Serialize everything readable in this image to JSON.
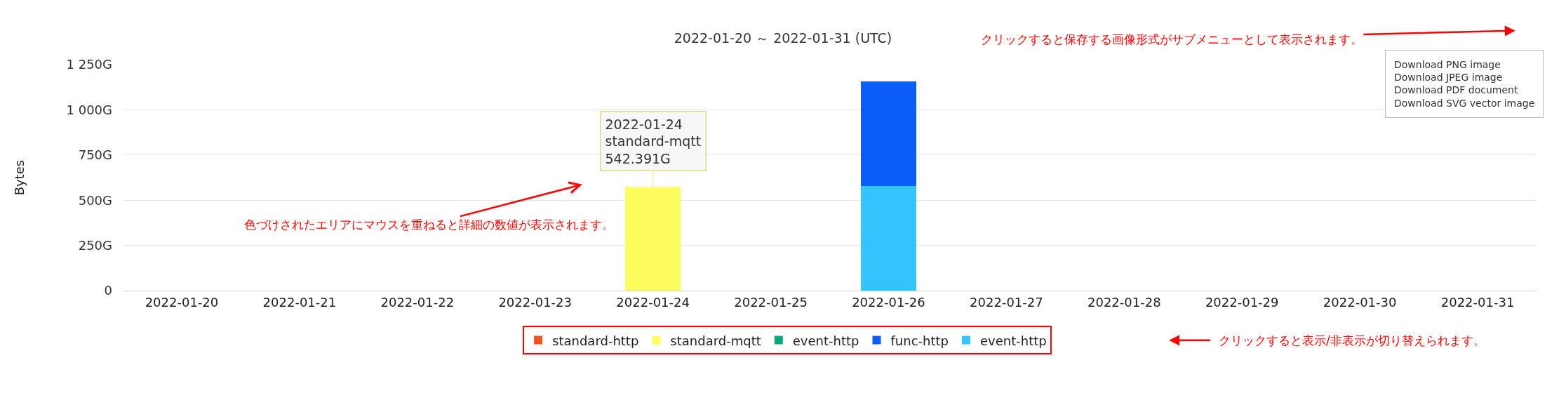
{
  "chart_data": {
    "type": "bar",
    "title": "2022-01-20 ～ 2022-01-31 (UTC)",
    "ylabel": "Bytes",
    "stacked": true,
    "categories": [
      "2022-01-20",
      "2022-01-21",
      "2022-01-22",
      "2022-01-23",
      "2022-01-24",
      "2022-01-25",
      "2022-01-26",
      "2022-01-27",
      "2022-01-28",
      "2022-01-29",
      "2022-01-30",
      "2022-01-31"
    ],
    "series": [
      {
        "name": "event-http",
        "color": "#33c4fd",
        "values": [
          null,
          null,
          null,
          null,
          null,
          null,
          578,
          null,
          null,
          null,
          null,
          null
        ]
      },
      {
        "name": "func-http",
        "color": "#0b5cf9",
        "values": [
          null,
          null,
          null,
          null,
          null,
          null,
          580,
          null,
          null,
          null,
          null,
          null
        ]
      },
      {
        "name": "event-http",
        "color": "#0ca87c",
        "values": [
          null,
          null,
          null,
          null,
          null,
          null,
          null,
          null,
          null,
          null,
          null,
          null
        ]
      },
      {
        "name": "standard-mqtt",
        "color": "#fdfd5f",
        "values": [
          null,
          null,
          null,
          null,
          576,
          null,
          null,
          null,
          null,
          null,
          null,
          null
        ]
      },
      {
        "name": "standard-http",
        "color": "#f4511e",
        "values": [
          null,
          null,
          null,
          null,
          null,
          null,
          null,
          null,
          null,
          null,
          null,
          null
        ]
      }
    ],
    "ylim": [
      0,
      1250
    ],
    "yticks": [
      {
        "value": 0,
        "label": "0"
      },
      {
        "value": 250,
        "label": "250G"
      },
      {
        "value": 500,
        "label": "500G"
      },
      {
        "value": 750,
        "label": "750G"
      },
      {
        "value": 1000,
        "label": "1 000G"
      },
      {
        "value": 1250,
        "label": "1 250G"
      }
    ],
    "grid": "y",
    "legend": "bottom",
    "annotations": [
      {
        "text": "2022-01-24\nstandard-mqtt\n542.391G",
        "x": "2022-01-24",
        "y": 576
      },
      "色づけされたエリアにマウスを重ねると詳細の数値が表示されます。",
      "クリックすると保存する画像形式がサブメニューとして表示されます。",
      "Download PNG image\nDownload JPEG image\nDownload PDF document\nDownload SVG vector image",
      "クリックすると表示/非表示が切り替えられます。"
    ]
  }
}
